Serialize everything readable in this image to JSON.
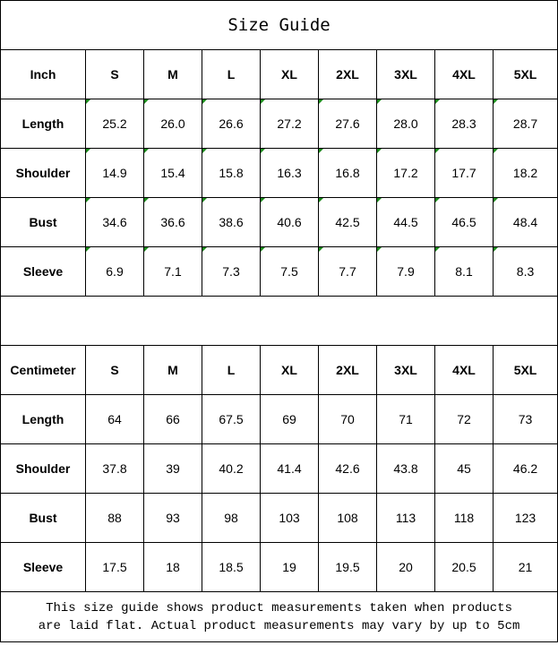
{
  "title": "Size Guide",
  "sizes": [
    "S",
    "M",
    "L",
    "XL",
    "2XL",
    "3XL",
    "4XL",
    "5XL"
  ],
  "inch": {
    "unit_label": "Inch",
    "rows": [
      {
        "label": "Length",
        "values": [
          "25.2",
          "26.0",
          "26.6",
          "27.2",
          "27.6",
          "28.0",
          "28.3",
          "28.7"
        ]
      },
      {
        "label": "Shoulder",
        "values": [
          "14.9",
          "15.4",
          "15.8",
          "16.3",
          "16.8",
          "17.2",
          "17.7",
          "18.2"
        ]
      },
      {
        "label": "Bust",
        "values": [
          "34.6",
          "36.6",
          "38.6",
          "40.6",
          "42.5",
          "44.5",
          "46.5",
          "48.4"
        ]
      },
      {
        "label": "Sleeve",
        "values": [
          "6.9",
          "7.1",
          "7.3",
          "7.5",
          "7.7",
          "7.9",
          "8.1",
          "8.3"
        ]
      }
    ]
  },
  "centimeter": {
    "unit_label": "Centimeter",
    "rows": [
      {
        "label": "Length",
        "values": [
          "64",
          "66",
          "67.5",
          "69",
          "70",
          "71",
          "72",
          "73"
        ]
      },
      {
        "label": "Shoulder",
        "values": [
          "37.8",
          "39",
          "40.2",
          "41.4",
          "42.6",
          "43.8",
          "45",
          "46.2"
        ]
      },
      {
        "label": "Bust",
        "values": [
          "88",
          "93",
          "98",
          "103",
          "108",
          "113",
          "118",
          "123"
        ]
      },
      {
        "label": "Sleeve",
        "values": [
          "17.5",
          "18",
          "18.5",
          "19",
          "19.5",
          "20",
          "20.5",
          "21"
        ]
      }
    ]
  },
  "note_line1": "This size guide shows product measurements taken when products",
  "note_line2": "are laid flat. Actual product measurements may vary by up to 5cm",
  "colors": {
    "cell_marker": "#1a8a1a"
  }
}
